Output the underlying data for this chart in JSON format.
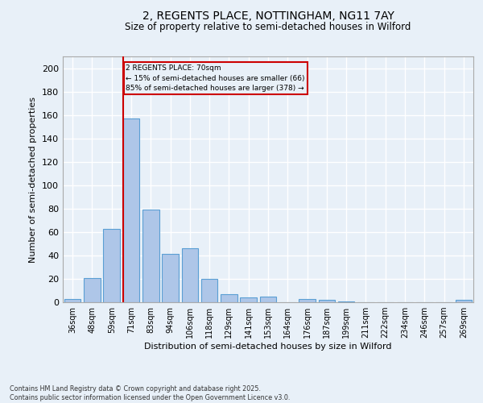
{
  "title_line1": "2, REGENTS PLACE, NOTTINGHAM, NG11 7AY",
  "title_line2": "Size of property relative to semi-detached houses in Wilford",
  "xlabel": "Distribution of semi-detached houses by size in Wilford",
  "ylabel": "Number of semi-detached properties",
  "categories": [
    "36sqm",
    "48sqm",
    "59sqm",
    "71sqm",
    "83sqm",
    "94sqm",
    "106sqm",
    "118sqm",
    "129sqm",
    "141sqm",
    "153sqm",
    "164sqm",
    "176sqm",
    "187sqm",
    "199sqm",
    "211sqm",
    "222sqm",
    "234sqm",
    "246sqm",
    "257sqm",
    "269sqm"
  ],
  "values": [
    3,
    21,
    63,
    157,
    79,
    41,
    46,
    20,
    7,
    4,
    5,
    0,
    3,
    2,
    1,
    0,
    0,
    0,
    0,
    0,
    2
  ],
  "bar_color": "#aec6e8",
  "bar_edge_color": "#5a9fd4",
  "background_color": "#e8f0f8",
  "grid_color": "#ffffff",
  "property_line_bin_index": 3,
  "annotation_title": "2 REGENTS PLACE: 70sqm",
  "annotation_line1": "← 15% of semi-detached houses are smaller (66)",
  "annotation_line2": "85% of semi-detached houses are larger (378) →",
  "annotation_box_color": "#cc0000",
  "vline_color": "#cc0000",
  "ylim": [
    0,
    210
  ],
  "yticks": [
    0,
    20,
    40,
    60,
    80,
    100,
    120,
    140,
    160,
    180,
    200
  ],
  "footer_line1": "Contains HM Land Registry data © Crown copyright and database right 2025.",
  "footer_line2": "Contains public sector information licensed under the Open Government Licence v3.0."
}
